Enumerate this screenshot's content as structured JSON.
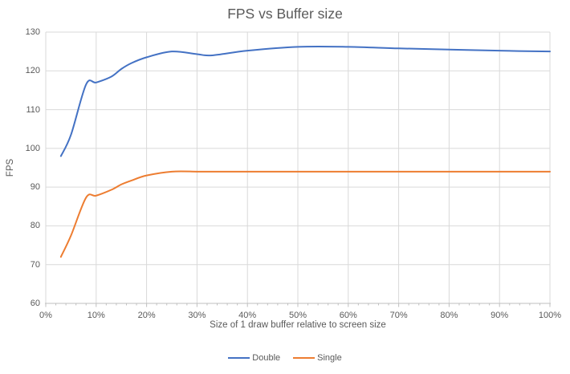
{
  "chart_data": {
    "type": "line",
    "title": "FPS vs Buffer size",
    "xlabel": "Size of 1 draw buffer relative to screen size",
    "ylabel": "FPS",
    "xlim": [
      0,
      100
    ],
    "ylim": [
      60,
      130
    ],
    "x_tick_labels": [
      "0%",
      "10%",
      "20%",
      "30%",
      "40%",
      "50%",
      "60%",
      "70%",
      "80%",
      "90%",
      "100%"
    ],
    "x_tick_values": [
      0,
      10,
      20,
      30,
      40,
      50,
      60,
      70,
      80,
      90,
      100
    ],
    "x_minor_tick_step": 2,
    "y_tick_values": [
      60,
      70,
      80,
      90,
      100,
      110,
      120,
      130
    ],
    "grid": "both",
    "legend_position": "bottom",
    "smooth_lines": true,
    "x": [
      3,
      5,
      8,
      10,
      13,
      15,
      17,
      20,
      25,
      30,
      33,
      40,
      50,
      60,
      70,
      80,
      90,
      100
    ],
    "series": [
      {
        "name": "Double",
        "color": "#4472C4",
        "values": [
          98,
          103.5,
          116.5,
          117,
          118.5,
          120.5,
          122,
          123.5,
          125,
          124.3,
          124,
          125.2,
          126.2,
          126.2,
          125.8,
          125.5,
          125.2,
          125
        ]
      },
      {
        "name": "Single",
        "color": "#ED7D31",
        "values": [
          72,
          77.5,
          87.3,
          87.8,
          89.3,
          90.7,
          91.7,
          93,
          94,
          94,
          94,
          94,
          94,
          94,
          94,
          94,
          94,
          94
        ]
      }
    ]
  },
  "colors": {
    "gridline": "#D9D9D9",
    "axis_line": "#BFBFBF",
    "text": "#595959",
    "background": "#FFFFFF"
  }
}
